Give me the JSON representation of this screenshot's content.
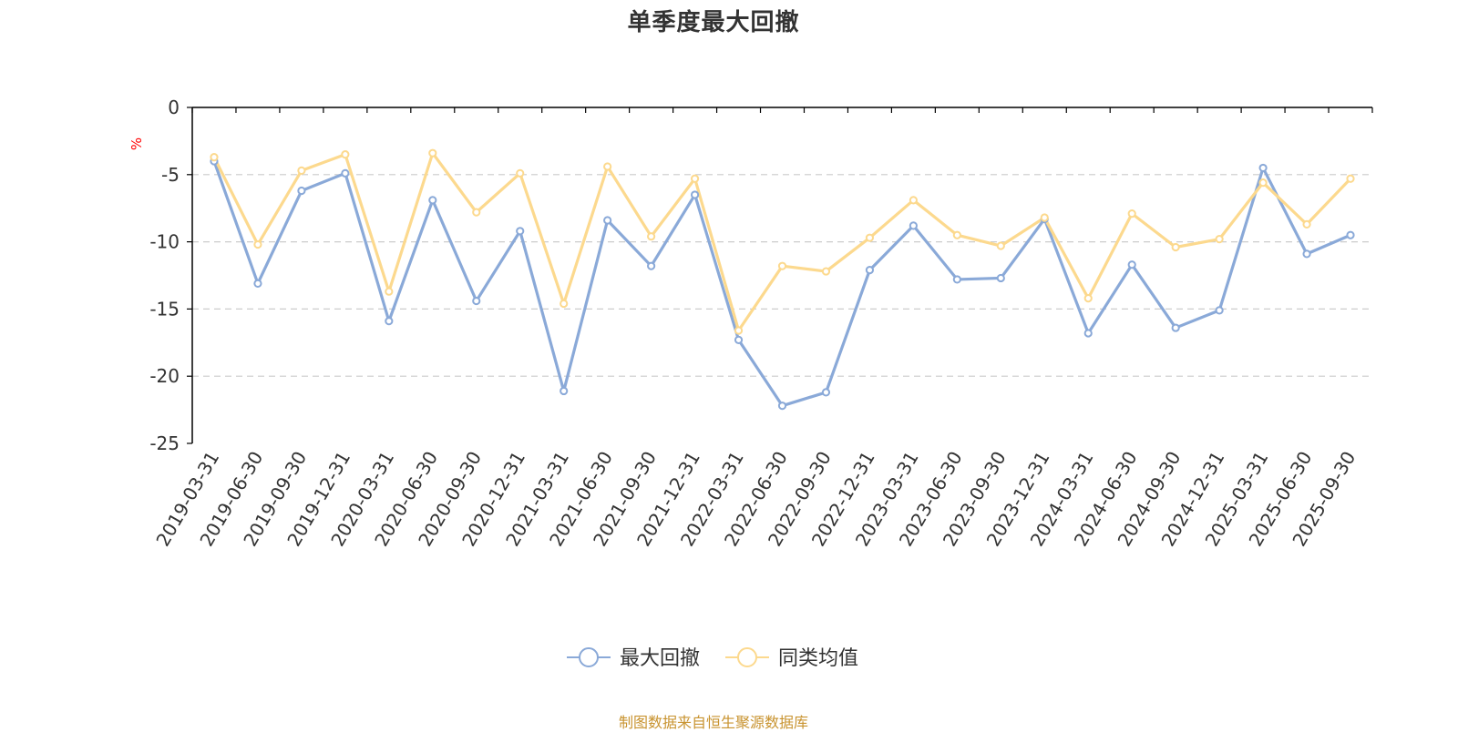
{
  "chart_data": {
    "type": "line",
    "title": "单季度最大回撤",
    "unit": "%",
    "ylim": [
      -25,
      0
    ],
    "yticks": [
      "0",
      "-5",
      "-10",
      "-15",
      "-20",
      "-25"
    ],
    "grid": "horizontal dashed",
    "legend_position": "bottom-center",
    "x": [
      "2019-03-31",
      "2019-06-30",
      "2019-09-30",
      "2019-12-31",
      "2020-03-31",
      "2020-06-30",
      "2020-09-30",
      "2020-12-31",
      "2021-03-31",
      "2021-06-30",
      "2021-09-30",
      "2021-12-31",
      "2022-03-31",
      "2022-06-30",
      "2022-09-30",
      "2022-12-31",
      "2023-03-31",
      "2023-06-30",
      "2023-09-30",
      "2023-12-31",
      "2024-03-31",
      "2024-06-30",
      "2024-09-30",
      "2024-12-31",
      "2025-03-31",
      "2025-06-30",
      "2025-09-30"
    ],
    "series": [
      {
        "name": "最大回撤",
        "color": "#8aa9d8",
        "values": [
          -4.0,
          -13.1,
          -6.2,
          -4.9,
          -15.9,
          -6.9,
          -14.4,
          -9.2,
          -21.1,
          -8.4,
          -11.8,
          -6.5,
          -17.3,
          -22.2,
          -21.2,
          -12.1,
          -8.8,
          -12.8,
          -12.7,
          -8.3,
          -16.8,
          -11.7,
          -16.4,
          -15.1,
          -4.5,
          -10.9,
          -9.5
        ]
      },
      {
        "name": "同类均值",
        "color": "#fcd98e",
        "values": [
          -3.7,
          -10.2,
          -4.7,
          -3.5,
          -13.7,
          -3.4,
          -7.8,
          -4.9,
          -14.6,
          -4.4,
          -9.6,
          -5.3,
          -16.6,
          -11.8,
          -12.2,
          -9.7,
          -6.9,
          -9.5,
          -10.3,
          -8.2,
          -14.2,
          -7.9,
          -10.4,
          -9.8,
          -5.6,
          -8.7,
          -5.3
        ]
      }
    ]
  },
  "footer": {
    "source": "制图数据来自恒生聚源数据库"
  },
  "colors": {
    "axis": "#000000",
    "grid": "#cccccc",
    "unit": "#ff0000",
    "source": "#c8932f"
  }
}
